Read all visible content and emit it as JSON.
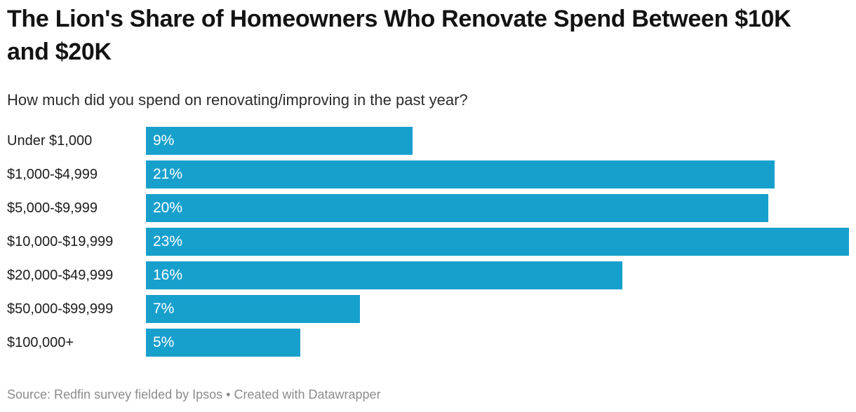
{
  "page": {
    "background": "#ffffff"
  },
  "header": {
    "title": "The Lion's Share of Homeowners Who Renovate Spend Between $10K and $20K",
    "subtitle": "How much did you spend on renovating/improving in the past year?"
  },
  "chart_data": {
    "type": "bar",
    "orientation": "horizontal",
    "title": "The Lion's Share of Homeowners Who Renovate Spend Between $10K and $20K",
    "subtitle": "How much did you spend on renovating/improving in the past year?",
    "categories": [
      "Under $1,000",
      "$1,000-$4,999",
      "$5,000-$9,999",
      "$10,000-$19,999",
      "$20,000-$49,999",
      "$50,000-$99,999",
      "$100,000+"
    ],
    "values": [
      9,
      21,
      20,
      23,
      16,
      7,
      5
    ],
    "value_labels": [
      "9%",
      "21%",
      "20%",
      "23%",
      "16%",
      "7%",
      "5%"
    ],
    "bar_width_pct_of_max": [
      37.92,
      89.42,
      88.52,
      100,
      67.76,
      30.44,
      21.96
    ],
    "bar_color": "#18a0cd",
    "value_label_color": "#ffffff",
    "xlim": [
      0,
      23
    ],
    "grid": false,
    "axes_visible": false,
    "legend": "none",
    "value_label_position": "inside-left"
  },
  "footer": {
    "source": "Source: Redfin survey fielded by Ipsos • Created with Datawrapper"
  }
}
